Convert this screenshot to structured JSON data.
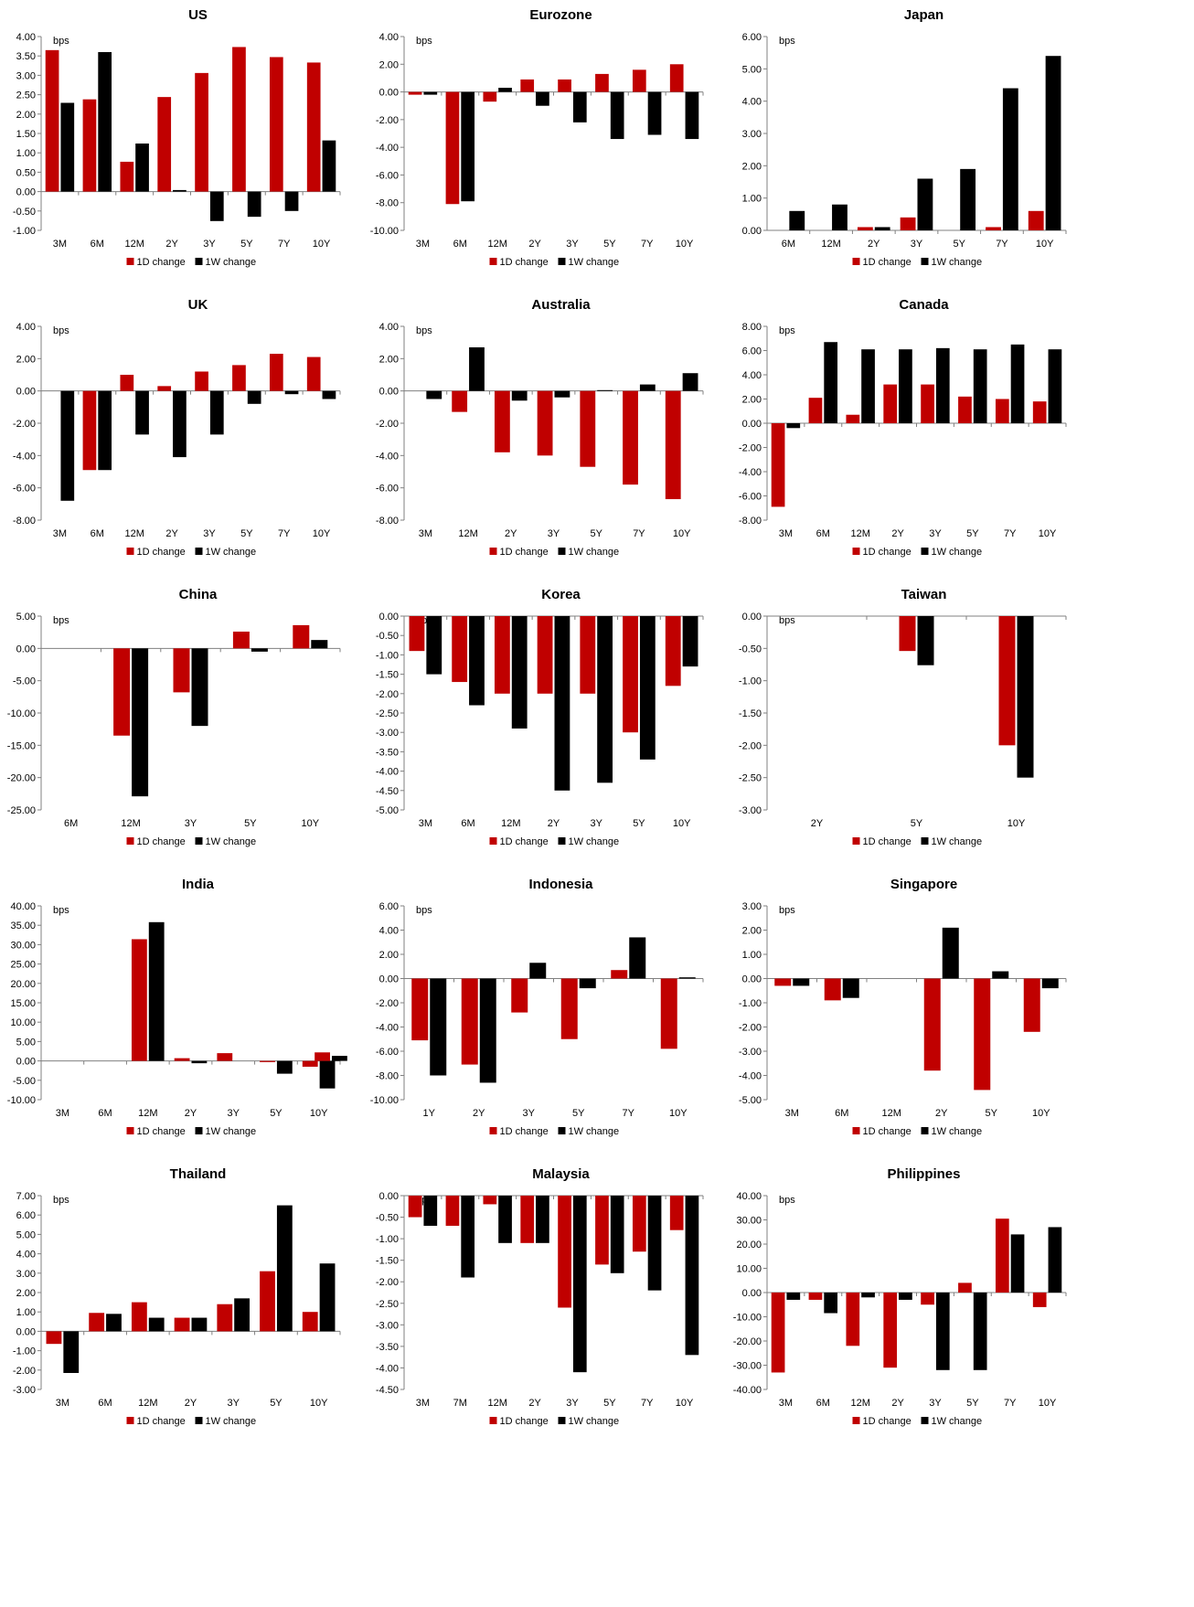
{
  "colors": {
    "d1": "#C00000",
    "w1": "#000000",
    "axis": "#808080"
  },
  "legend": {
    "d1": "1D change",
    "w1": "1W change"
  },
  "chart_data": [
    {
      "type": "bar",
      "title": "US",
      "unit": "bps",
      "ylim": [
        -1.0,
        4.0
      ],
      "step": 0.5,
      "categories": [
        "3M",
        "6M",
        "12M",
        "2Y",
        "3Y",
        "5Y",
        "7Y",
        "10Y"
      ],
      "series": [
        {
          "name": "1D change",
          "values": [
            3.65,
            2.38,
            0.77,
            2.44,
            3.06,
            3.73,
            3.47,
            3.33
          ]
        },
        {
          "name": "1W change",
          "values": [
            2.29,
            3.6,
            1.24,
            0.04,
            -0.76,
            -0.65,
            -0.5,
            1.32
          ]
        }
      ]
    },
    {
      "type": "bar",
      "title": "Eurozone",
      "unit": "bps",
      "ylim": [
        -10.0,
        4.0
      ],
      "step": 2.0,
      "categories": [
        "3M",
        "6M",
        "12M",
        "2Y",
        "3Y",
        "5Y",
        "7Y",
        "10Y"
      ],
      "series": [
        {
          "name": "1D change",
          "values": [
            -0.2,
            -8.1,
            -0.7,
            0.9,
            0.9,
            1.3,
            1.6,
            2.0
          ]
        },
        {
          "name": "1W change",
          "values": [
            -0.2,
            -7.9,
            0.3,
            -1.0,
            -2.2,
            -3.4,
            -3.1,
            -3.4
          ]
        }
      ]
    },
    {
      "type": "bar",
      "title": "Japan",
      "unit": "bps",
      "ylim": [
        0.0,
        6.0
      ],
      "step": 1.0,
      "categories": [
        "6M",
        "12M",
        "2Y",
        "3Y",
        "5Y",
        "7Y",
        "10Y"
      ],
      "series": [
        {
          "name": "1D change",
          "values": [
            0.0,
            0.0,
            0.1,
            0.4,
            0.0,
            0.1,
            0.6
          ]
        },
        {
          "name": "1W change",
          "values": [
            0.6,
            0.8,
            0.1,
            1.6,
            1.9,
            4.4,
            5.4
          ]
        }
      ]
    },
    {
      "type": "bar",
      "title": "UK",
      "unit": "bps",
      "ylim": [
        -8.0,
        4.0
      ],
      "step": 2.0,
      "categories": [
        "3M",
        "6M",
        "12M",
        "2Y",
        "3Y",
        "5Y",
        "7Y",
        "10Y"
      ],
      "series": [
        {
          "name": "1D change",
          "values": [
            0.0,
            -4.9,
            1.0,
            0.3,
            1.2,
            1.6,
            2.3,
            2.1
          ]
        },
        {
          "name": "1W change",
          "values": [
            -6.8,
            -4.9,
            -2.7,
            -4.1,
            -2.7,
            -0.8,
            -0.2,
            -0.5
          ]
        }
      ]
    },
    {
      "type": "bar",
      "title": "Australia",
      "unit": "bps",
      "ylim": [
        -8.0,
        4.0
      ],
      "step": 2.0,
      "categories": [
        "3M",
        "12M",
        "2Y",
        "3Y",
        "5Y",
        "7Y",
        "10Y"
      ],
      "series": [
        {
          "name": "1D change",
          "values": [
            0.0,
            -1.3,
            -3.8,
            -4.0,
            -4.7,
            -5.8,
            -6.7
          ]
        },
        {
          "name": "1W change",
          "values": [
            -0.5,
            2.7,
            -0.6,
            -0.4,
            0.05,
            0.4,
            1.1
          ]
        }
      ]
    },
    {
      "type": "bar",
      "title": "Canada",
      "unit": "bps",
      "ylim": [
        -8.0,
        8.0
      ],
      "step": 2.0,
      "categories": [
        "3M",
        "6M",
        "12M",
        "2Y",
        "3Y",
        "5Y",
        "7Y",
        "10Y"
      ],
      "series": [
        {
          "name": "1D change",
          "values": [
            -6.9,
            2.1,
            0.7,
            3.2,
            3.2,
            2.2,
            2.0,
            1.8
          ]
        },
        {
          "name": "1W change",
          "values": [
            -0.4,
            6.7,
            6.1,
            6.1,
            6.2,
            6.1,
            6.5,
            6.1
          ]
        }
      ]
    },
    {
      "type": "bar",
      "title": "China",
      "unit": "bps",
      "ylim": [
        -25.0,
        5.0
      ],
      "step": 5.0,
      "categories": [
        "6M",
        "12M",
        "3Y",
        "5Y",
        "10Y"
      ],
      "series": [
        {
          "name": "1D change",
          "values": [
            0.0,
            -13.5,
            -6.8,
            2.6,
            3.6
          ]
        },
        {
          "name": "1W change",
          "values": [
            0.0,
            -22.9,
            -12.0,
            -0.5,
            1.3
          ]
        }
      ]
    },
    {
      "type": "bar",
      "title": "Korea",
      "unit": "bps",
      "ylim": [
        -5.0,
        0.0
      ],
      "step": 0.5,
      "categories": [
        "3M",
        "6M",
        "12M",
        "2Y",
        "3Y",
        "5Y",
        "10Y"
      ],
      "series": [
        {
          "name": "1D change",
          "values": [
            -0.9,
            -1.7,
            -2.0,
            -2.0,
            -2.0,
            -3.0,
            -1.8
          ]
        },
        {
          "name": "1W change",
          "values": [
            -1.5,
            -2.3,
            -2.9,
            -4.5,
            -4.3,
            -3.7,
            -1.3
          ]
        }
      ]
    },
    {
      "type": "bar",
      "title": "Taiwan",
      "unit": "bps",
      "ylim": [
        -3.0,
        0.0
      ],
      "step": 0.5,
      "categories": [
        "2Y",
        "5Y",
        "10Y"
      ],
      "series": [
        {
          "name": "1D change",
          "values": [
            0.0,
            -0.54,
            -2.0
          ]
        },
        {
          "name": "1W change",
          "values": [
            0.0,
            -0.76,
            -2.5
          ]
        }
      ]
    },
    {
      "type": "bar",
      "title": "India",
      "unit": "bps",
      "ylim": [
        -10.0,
        40.0
      ],
      "step": 5.0,
      "categories": [
        "3M",
        "6M",
        "12M",
        "2Y",
        "3Y",
        "5Y",
        "10Y"
      ],
      "series": [
        {
          "name": "1D change",
          "values": [
            0.0,
            0.0,
            31.4,
            0.7,
            2.0,
            -0.3,
            -1.5
          ]
        },
        {
          "name": "1W change",
          "values": [
            0.0,
            0.0,
            35.8,
            -0.6,
            0.0,
            -3.3,
            -7.1
          ]
        }
      ],
      "extra": [
        {
          "value": 2.2,
          "value2": 1.3
        }
      ]
    },
    {
      "type": "bar",
      "title": "Indonesia",
      "unit": "bps",
      "ylim": [
        -10.0,
        6.0
      ],
      "step": 2.0,
      "categories": [
        "1Y",
        "2Y",
        "3Y",
        "5Y",
        "7Y",
        "10Y"
      ],
      "series": [
        {
          "name": "1D change",
          "values": [
            -5.1,
            -7.1,
            -2.8,
            -5.0,
            0.7,
            -5.8
          ]
        },
        {
          "name": "1W change",
          "values": [
            -8.0,
            -8.6,
            1.3,
            -0.8,
            3.4,
            0.1
          ]
        }
      ]
    },
    {
      "type": "bar",
      "title": "Singapore",
      "unit": "bps",
      "ylim": [
        -5.0,
        3.0
      ],
      "step": 1.0,
      "categories": [
        "3M",
        "6M",
        "12M",
        "2Y",
        "5Y",
        "10Y"
      ],
      "series": [
        {
          "name": "1D change",
          "values": [
            -0.3,
            -0.9,
            0.0,
            -3.8,
            -4.6,
            -2.2
          ]
        },
        {
          "name": "1W change",
          "values": [
            -0.3,
            -0.8,
            0.0,
            2.1,
            0.3,
            -0.4
          ]
        }
      ]
    },
    {
      "type": "bar",
      "title": "Thailand",
      "unit": "bps",
      "ylim": [
        -3.0,
        7.0
      ],
      "step": 1.0,
      "categories": [
        "3M",
        "6M",
        "12M",
        "2Y",
        "3Y",
        "5Y",
        "10Y"
      ],
      "series": [
        {
          "name": "1D change",
          "values": [
            -0.65,
            0.95,
            1.5,
            0.7,
            1.4,
            3.1,
            1.0
          ]
        },
        {
          "name": "1W change",
          "values": [
            -2.15,
            0.9,
            0.7,
            0.7,
            1.7,
            6.5,
            3.5
          ]
        }
      ]
    },
    {
      "type": "bar",
      "title": "Malaysia",
      "unit": "bps",
      "ylim": [
        -4.5,
        0.0
      ],
      "step": 0.5,
      "categories": [
        "3M",
        "7M",
        "12M",
        "2Y",
        "3Y",
        "5Y",
        "7Y",
        "10Y"
      ],
      "series": [
        {
          "name": "1D change",
          "values": [
            -0.5,
            -0.7,
            -0.2,
            -1.1,
            -2.6,
            -1.6,
            -1.3,
            -0.8
          ]
        },
        {
          "name": "1W change",
          "values": [
            -0.7,
            -1.9,
            -1.1,
            -1.1,
            -4.1,
            -1.8,
            -2.2,
            -3.7
          ]
        }
      ]
    },
    {
      "type": "bar",
      "title": "Philippines",
      "unit": "bps",
      "ylim": [
        -40.0,
        40.0
      ],
      "step": 10.0,
      "categories": [
        "3M",
        "6M",
        "12M",
        "2Y",
        "3Y",
        "5Y",
        "7Y",
        "10Y"
      ],
      "series": [
        {
          "name": "1D change",
          "values": [
            -33.0,
            -3.0,
            -22.0,
            -31.0,
            -5.0,
            4.0,
            30.5,
            -6.0
          ]
        },
        {
          "name": "1W change",
          "values": [
            -3.0,
            -8.5,
            -2.0,
            -3.0,
            -32.0,
            -32.0,
            24.0,
            27.0
          ]
        }
      ]
    }
  ]
}
